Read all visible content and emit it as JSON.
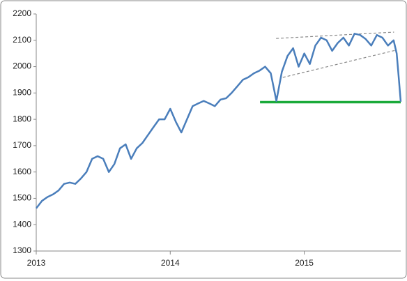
{
  "chart_data": {
    "type": "line",
    "x": [
      2013,
      2013.042,
      2013.083,
      2013.125,
      2013.167,
      2013.208,
      2013.25,
      2013.292,
      2013.333,
      2013.375,
      2013.417,
      2013.458,
      2013.5,
      2013.542,
      2013.583,
      2013.625,
      2013.667,
      2013.708,
      2013.75,
      2013.792,
      2013.833,
      2013.875,
      2013.917,
      2013.958,
      2014,
      2014.042,
      2014.083,
      2014.125,
      2014.167,
      2014.208,
      2014.25,
      2014.292,
      2014.333,
      2014.375,
      2014.417,
      2014.458,
      2014.5,
      2014.542,
      2014.583,
      2014.625,
      2014.667,
      2014.708,
      2014.75,
      2014.792,
      2014.833,
      2014.875,
      2014.917,
      2014.958,
      2015,
      2015.042,
      2015.083,
      2015.125,
      2015.167,
      2015.208,
      2015.25,
      2015.292,
      2015.333,
      2015.375,
      2015.417,
      2015.458,
      2015.5,
      2015.542,
      2015.583,
      2015.625,
      2015.667,
      2015.69,
      2015.705,
      2015.72
    ],
    "series": [
      {
        "color": "#4a7ebb",
        "values": [
          1462,
          1490,
          1505,
          1515,
          1530,
          1555,
          1560,
          1555,
          1575,
          1600,
          1650,
          1660,
          1650,
          1600,
          1630,
          1690,
          1705,
          1650,
          1690,
          1710,
          1740,
          1770,
          1800,
          1800,
          1840,
          1790,
          1750,
          1800,
          1850,
          1860,
          1870,
          1860,
          1850,
          1875,
          1880,
          1900,
          1925,
          1950,
          1960,
          1975,
          1985,
          2000,
          1975,
          1870,
          1980,
          2040,
          2070,
          2000,
          2050,
          2010,
          2080,
          2110,
          2100,
          2060,
          2090,
          2110,
          2080,
          2125,
          2120,
          2105,
          2080,
          2120,
          2110,
          2080,
          2100,
          2050,
          1960,
          1867
        ]
      }
    ],
    "reference_lines": [
      {
        "x": [
          2014.67,
          2015.72
        ],
        "y": [
          1865,
          1865
        ],
        "color": "#1aaa3a",
        "style": "solid"
      },
      {
        "x": [
          2014.79,
          2015.67
        ],
        "y": [
          2107,
          2131
        ],
        "color": "#888888",
        "style": "dashed"
      },
      {
        "x": [
          2014.84,
          2015.68
        ],
        "y": [
          1959,
          2062
        ],
        "color": "#888888",
        "style": "dashed"
      }
    ],
    "xlim": [
      2013,
      2015.72
    ],
    "xticks": [
      2013,
      2014,
      2015
    ],
    "ylim": [
      1300,
      2200
    ],
    "yticks": [
      1300,
      1400,
      1500,
      1600,
      1700,
      1800,
      1900,
      2000,
      2100,
      2200
    ],
    "grid": false
  }
}
